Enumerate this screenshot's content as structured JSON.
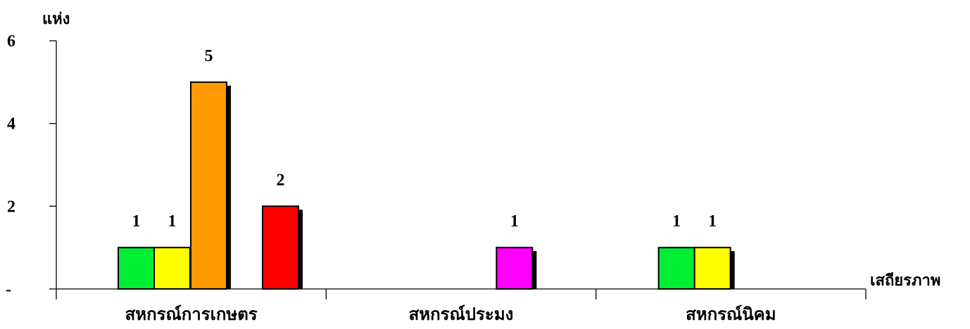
{
  "chart_data": {
    "type": "bar",
    "ylabel": "แห่ง",
    "xlabel": "เสถียรภาพ",
    "ylim": [
      0,
      6
    ],
    "yticks": [
      {
        "value": 0,
        "label": "-"
      },
      {
        "value": 2,
        "label": "2"
      },
      {
        "value": 4,
        "label": "4"
      },
      {
        "value": 6,
        "label": "6"
      }
    ],
    "grid": false,
    "categories": [
      "สหกรณ์การเกษตร",
      "สหกรณ์ประมง",
      "สหกรณ์นิคม"
    ],
    "bars": [
      {
        "category": "สหกรณ์การเกษตร",
        "value": 1,
        "label": "1",
        "color": "#00ee33"
      },
      {
        "category": "สหกรณ์การเกษตร",
        "value": 1,
        "label": "1",
        "color": "#ffff00"
      },
      {
        "category": "สหกรณ์การเกษตร",
        "value": 5,
        "label": "5",
        "color": "#ff9900"
      },
      {
        "category": "สหกรณ์การเกษตร",
        "value": 2,
        "label": "2",
        "color": "#ff0000"
      },
      {
        "category": "สหกรณ์ประมง",
        "value": 1,
        "label": "1",
        "color": "#ff00ff"
      },
      {
        "category": "สหกรณ์นิคม",
        "value": 1,
        "label": "1",
        "color": "#00ee33"
      },
      {
        "category": "สหกรณ์นิคม",
        "value": 1,
        "label": "1",
        "color": "#ffff00"
      }
    ]
  }
}
